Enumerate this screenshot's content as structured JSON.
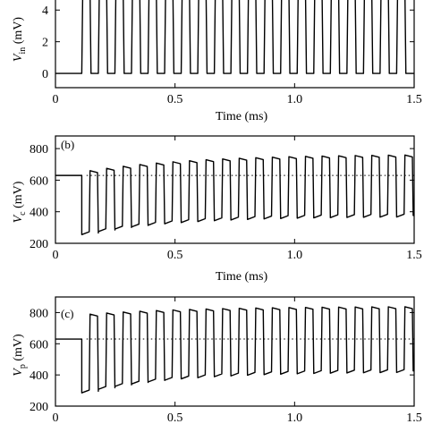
{
  "chart_data": [
    {
      "type": "line",
      "panel_label": "",
      "xlabel": "Time (ms)",
      "ylabel": "V_in (mV)",
      "ylabel_main": "V",
      "ylabel_sub": "in",
      "ylabel_unit": " (mV)",
      "xlim": [
        0,
        1.5
      ],
      "ylim": [
        -0.9,
        5.2
      ],
      "xticks": [
        0,
        0.5,
        1.0,
        1.5
      ],
      "xtick_labels": [
        "0",
        "0.5",
        "1.0",
        "1.5"
      ],
      "yticks": [
        0,
        2,
        4
      ],
      "ytick_labels": [
        "0",
        "2",
        "4"
      ],
      "baseline": null,
      "signal": {
        "start": 0.11,
        "period": 0.0693,
        "duty": 0.5,
        "cycles": 20,
        "low": 0,
        "high": 6,
        "pre_value": 0,
        "style": "square"
      }
    },
    {
      "type": "line",
      "panel_label": "(b)",
      "xlabel": "Time (ms)",
      "ylabel": "V_c (mV)",
      "ylabel_main": "V",
      "ylabel_sub": "c",
      "ylabel_unit": " (mV)",
      "xlim": [
        0,
        1.5
      ],
      "ylim": [
        200,
        880
      ],
      "xticks": [
        0,
        0.5,
        1.0,
        1.5
      ],
      "xtick_labels": [
        "0",
        "0.5",
        "1.0",
        "1.5"
      ],
      "yticks": [
        200,
        400,
        600,
        800
      ],
      "ytick_labels": [
        "200",
        "400",
        "600",
        "800"
      ],
      "baseline": 630,
      "signal": {
        "start": 0.11,
        "period": 0.0693,
        "duty": 0.5,
        "cycles": 20,
        "pre_value": 630,
        "style": "charging",
        "high_start": 660,
        "high_end": 765,
        "low_start": 255,
        "low_end": 370
      }
    },
    {
      "type": "line",
      "panel_label": "(c)",
      "xlabel": "",
      "ylabel": "V_p (mV)",
      "ylabel_main": "V",
      "ylabel_sub": "p",
      "ylabel_unit": " (mV)",
      "xlim": [
        0,
        1.5
      ],
      "ylim": [
        200,
        900
      ],
      "xticks": [
        0,
        0.5,
        1.0,
        1.5
      ],
      "xtick_labels": [
        "0",
        "0.5",
        "1.0",
        "1.5"
      ],
      "yticks": [
        200,
        400,
        600,
        800
      ],
      "ytick_labels": [
        "200",
        "400",
        "600",
        "800"
      ],
      "baseline": 630,
      "signal": {
        "start": 0.11,
        "period": 0.0693,
        "duty": 0.5,
        "cycles": 20,
        "pre_value": 630,
        "style": "charging",
        "high_start": 790,
        "high_end": 840,
        "low_start": 285,
        "low_end": 420
      }
    }
  ]
}
